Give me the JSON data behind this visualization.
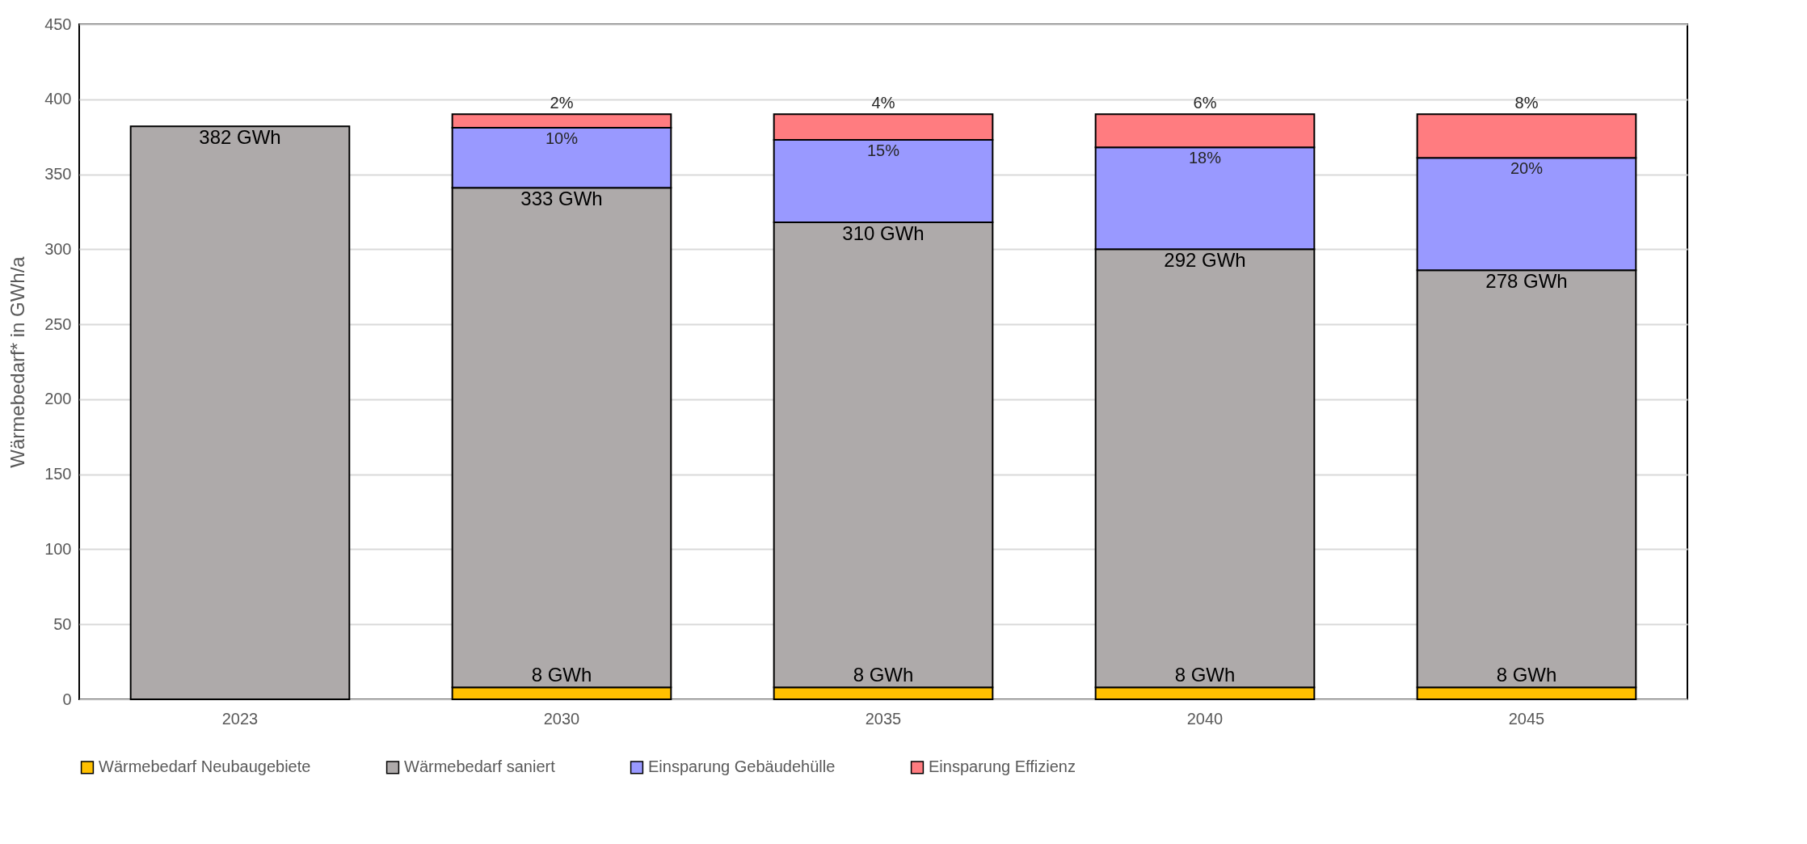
{
  "chart_data": {
    "type": "bar",
    "stacked": true,
    "ylabel": "Wärmebedarf* in GWh/a",
    "categories": [
      "2023",
      "2030",
      "2035",
      "2040",
      "2045"
    ],
    "ylim": [
      0,
      450
    ],
    "yticks": [
      0,
      50,
      100,
      150,
      200,
      250,
      300,
      350,
      400,
      450
    ],
    "grid": "y",
    "legend": "bottom",
    "series": [
      {
        "name": "Wärmebedarf Neubaugebiete",
        "color": "#ffc000",
        "values": [
          null,
          8,
          8,
          8,
          8
        ],
        "value_labels": [
          null,
          "8 GWh",
          "8 GWh",
          "8 GWh",
          "8 GWh"
        ]
      },
      {
        "name": "Wärmebedarf saniert",
        "color": "#aeaaaa",
        "values": [
          382,
          333,
          310,
          292,
          278
        ],
        "value_labels": [
          "382 GWh",
          "333 GWh",
          "310 GWh",
          "292 GWh",
          "278 GWh"
        ]
      },
      {
        "name": "Einsparung Gebäudehülle",
        "color": "#9999ff",
        "values": [
          null,
          40,
          55,
          68,
          75
        ]
      },
      {
        "name": "Einsparung Effizienz",
        "color": "#ff7c80",
        "values": [
          null,
          9,
          17,
          22,
          29
        ]
      }
    ],
    "annotations": [
      {
        "text": "2%",
        "x": "2030",
        "y": 390
      },
      {
        "text": "10%",
        "x": "2030",
        "y": 381
      },
      {
        "text": "4%",
        "x": "2035",
        "y": 390
      },
      {
        "text": "15%",
        "x": "2035",
        "y": 373
      },
      {
        "text": "6%",
        "x": "2040",
        "y": 390
      },
      {
        "text": "18%",
        "x": "2040",
        "y": 368
      },
      {
        "text": "8%",
        "x": "2045",
        "y": 390
      },
      {
        "text": "20%",
        "x": "2045",
        "y": 361
      }
    ]
  }
}
